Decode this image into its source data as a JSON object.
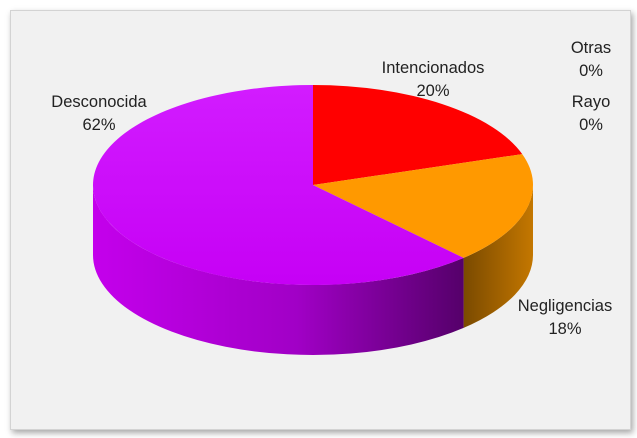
{
  "chart_data": {
    "type": "pie",
    "style": "3d",
    "slices": [
      {
        "label": "Intencionados",
        "value": 20,
        "percent_label": "20%",
        "color": "#ff0000"
      },
      {
        "label": "Negligencias",
        "value": 18,
        "percent_label": "18%",
        "color": "#ff9900"
      },
      {
        "label": "Desconocida",
        "value": 62,
        "percent_label": "62%",
        "color": "#cc00ff"
      },
      {
        "label": "Rayo",
        "value": 0,
        "percent_label": "0%",
        "color": "#808080"
      },
      {
        "label": "Otras",
        "value": 0,
        "percent_label": "0%",
        "color": "#808080"
      }
    ]
  }
}
